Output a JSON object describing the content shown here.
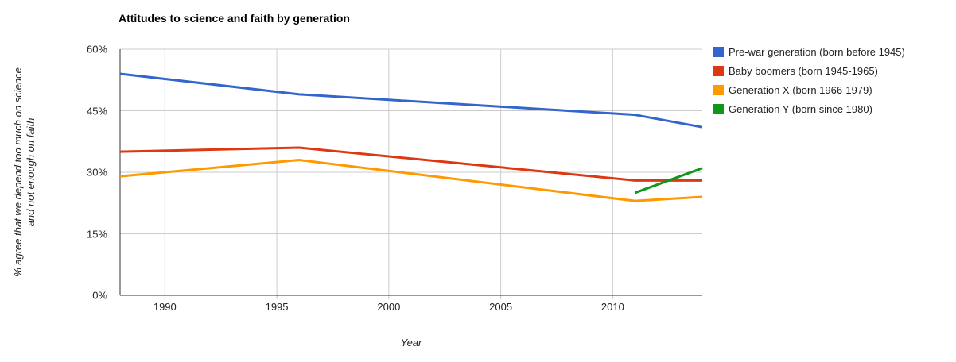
{
  "chart_data": {
    "type": "line",
    "title": "Attitudes to science and faith by generation",
    "xlabel": "Year",
    "ylabel": "% agree that we depend too much on science and not enough on faith",
    "ylabel_lines": [
      "% agree that we depend too much on science",
      "and not enough on faith"
    ],
    "xlim": [
      1988,
      2014
    ],
    "ylim": [
      0,
      60
    ],
    "grid": true,
    "legend_position": "right",
    "x_ticks": [
      {
        "value": 1990,
        "label": "1990"
      },
      {
        "value": 1995,
        "label": "1995"
      },
      {
        "value": 2000,
        "label": "2000"
      },
      {
        "value": 2005,
        "label": "2005"
      },
      {
        "value": 2010,
        "label": "2010"
      }
    ],
    "y_ticks": [
      {
        "value": 0,
        "label": "0%"
      },
      {
        "value": 15,
        "label": "15%"
      },
      {
        "value": 30,
        "label": "30%"
      },
      {
        "value": 45,
        "label": "45%"
      },
      {
        "value": 60,
        "label": "60%"
      }
    ],
    "series": [
      {
        "name": "Pre-war generation (born before 1945)",
        "color": "#3366CC",
        "points": [
          {
            "x": 1988,
            "y": 54
          },
          {
            "x": 1996,
            "y": 49
          },
          {
            "x": 2011,
            "y": 44
          },
          {
            "x": 2014,
            "y": 41
          }
        ]
      },
      {
        "name": "Baby boomers (born 1945-1965)",
        "color": "#DC3912",
        "points": [
          {
            "x": 1988,
            "y": 35
          },
          {
            "x": 1996,
            "y": 36
          },
          {
            "x": 2011,
            "y": 28
          },
          {
            "x": 2014,
            "y": 28
          }
        ]
      },
      {
        "name": "Generation X (born 1966-1979)",
        "color": "#FF9900",
        "points": [
          {
            "x": 1988,
            "y": 29
          },
          {
            "x": 1996,
            "y": 33
          },
          {
            "x": 2011,
            "y": 23
          },
          {
            "x": 2014,
            "y": 24
          }
        ]
      },
      {
        "name": "Generation Y (born since 1980)",
        "color": "#109618",
        "points": [
          {
            "x": 2011,
            "y": 25
          },
          {
            "x": 2014,
            "y": 31
          }
        ]
      }
    ],
    "colors": {
      "gridline": "#cccccc",
      "axis": "#333333",
      "text": "#222222"
    }
  }
}
